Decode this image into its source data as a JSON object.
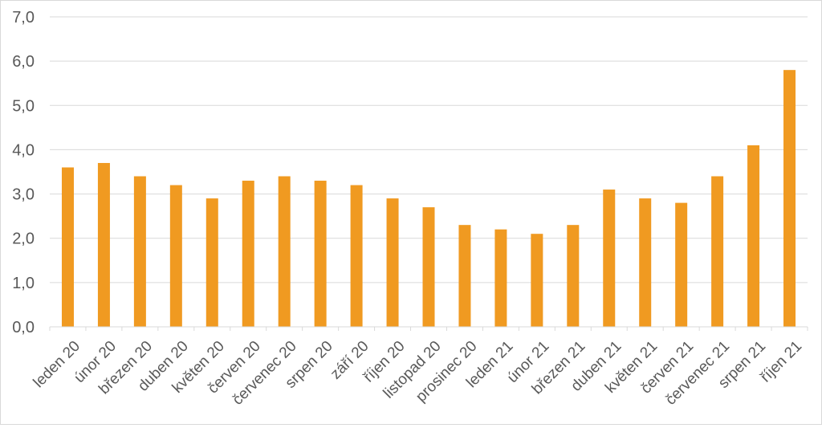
{
  "chart_data": {
    "type": "bar",
    "categories": [
      "leden 20",
      "únor 20",
      "březen 20",
      "duben 20",
      "květen 20",
      "červen 20",
      "červenec 20",
      "srpen 20",
      "září 20",
      "říjen 20",
      "listopad 20",
      "prosinec 20",
      "leden 21",
      "únor 21",
      "březen 21",
      "duben 21",
      "květen 21",
      "červen 21",
      "červenec 21",
      "srpen 21",
      "říjen 21"
    ],
    "values": [
      3.6,
      3.7,
      3.4,
      3.2,
      2.9,
      3.3,
      3.4,
      3.3,
      3.2,
      2.9,
      2.7,
      2.3,
      2.2,
      2.1,
      2.3,
      3.1,
      2.9,
      2.8,
      3.4,
      4.1,
      5.8
    ],
    "yticks": [
      "0,0",
      "1,0",
      "2,0",
      "3,0",
      "4,0",
      "5,0",
      "6,0",
      "7,0"
    ],
    "ylim": [
      0,
      7
    ],
    "grid": true,
    "bar_color": "#f09a21",
    "grid_color": "#d9d9d9",
    "title": "",
    "xlabel": "",
    "ylabel": ""
  }
}
